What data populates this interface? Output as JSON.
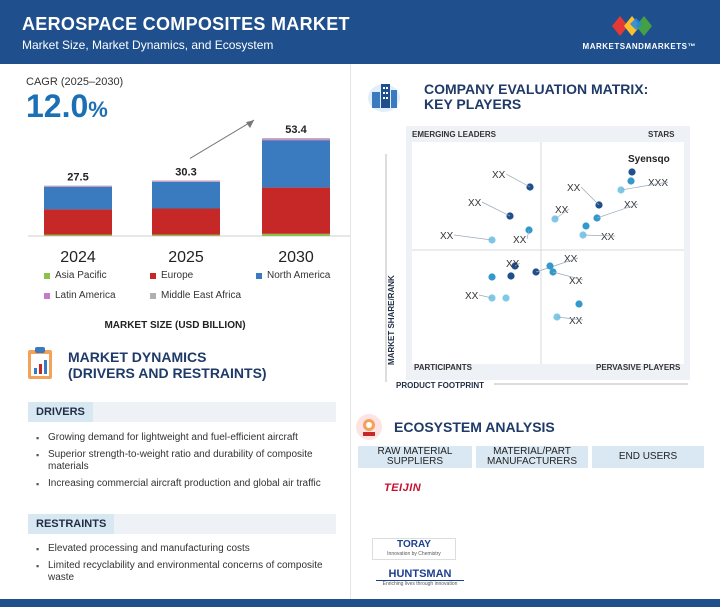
{
  "header": {
    "title": "AEROSPACE COMPOSITES MARKET",
    "subtitle": "Market Size, Market Dynamics, and Ecosystem",
    "logo": "MARKETSANDMARKETS™"
  },
  "cagr": {
    "label": "CAGR (2025–2030)",
    "number": "12.0",
    "unit": "%"
  },
  "chart_data": {
    "type": "bar",
    "stacked": true,
    "categories": [
      "2024",
      "2025",
      "2030"
    ],
    "totals": [
      "27.5",
      "30.3",
      "53.4"
    ],
    "total_values": [
      27.5,
      30.3,
      53.4
    ],
    "series": [
      {
        "name": "Asia Pacific",
        "color": "#8bc34a",
        "values": [
          0.7,
          0.7,
          1.2
        ]
      },
      {
        "name": "Europe",
        "color": "#c62828",
        "values": [
          13.8,
          14.3,
          25.2
        ]
      },
      {
        "name": "North America",
        "color": "#3a7bbf",
        "values": [
          12.3,
          14.5,
          25.7
        ]
      },
      {
        "name": "Latin America",
        "color": "#c879c8",
        "values": [
          0.4,
          0.4,
          0.7
        ]
      },
      {
        "name": "Middle East Africa",
        "color": "#b0b0b0",
        "values": [
          0.3,
          0.4,
          0.6
        ]
      }
    ],
    "ylim": [
      0,
      60
    ],
    "xlabel": "MARKET SIZE (USD BILLION)"
  },
  "dynamics": {
    "title_line1": "MARKET DYNAMICS",
    "title_line2": "(DRIVERS AND RESTRAINTS)",
    "drivers_label": "DRIVERS",
    "drivers": [
      "Growing demand for lightweight and fuel-efficient aircraft",
      "Superior strength-to-weight ratio and durability of composite materials",
      "Increasing commercial aircraft production and global air traffic"
    ],
    "restraints_label": "RESTRAINTS",
    "restraints": [
      "Elevated processing and manufacturing costs",
      "Limited recyclability and environmental concerns of composite waste"
    ]
  },
  "matrix": {
    "title_line1": "COMPANY EVALUATION MATRIX:",
    "title_line2": "KEY PLAYERS",
    "q_top_left": "EMERGING LEADERS",
    "q_top_right": "STARS",
    "q_bottom_left": "PARTICIPANTS",
    "q_bottom_right": "PERVASIVE PLAYERS",
    "y_axis": "MARKET SHARE/RANK",
    "x_axis": "PRODUCT FOOTPRINT",
    "labels": [
      "Syensqo",
      "XXX",
      "XX",
      "XX",
      "XX",
      "XX",
      "XX",
      "XX",
      "XX",
      "XX",
      "XX",
      "XX",
      "XX",
      "XX",
      "XX"
    ],
    "colors": {
      "dark": "#1f4f8c",
      "mid": "#3399cc",
      "light": "#7fc8e8"
    }
  },
  "ecosystem": {
    "title": "ECOSYSTEM ANALYSIS",
    "col1": "RAW MATERIAL SUPPLIERS",
    "col2": "MATERIAL/PART MANUFACTURERS",
    "col3": "END USERS",
    "logo1": "TEIJIN",
    "logo2": "TORAY",
    "logo2_tag": "Innovation by Chemistry",
    "logo3": "HUNTSMAN",
    "logo3_tag": "Enriching lives through innovation"
  }
}
